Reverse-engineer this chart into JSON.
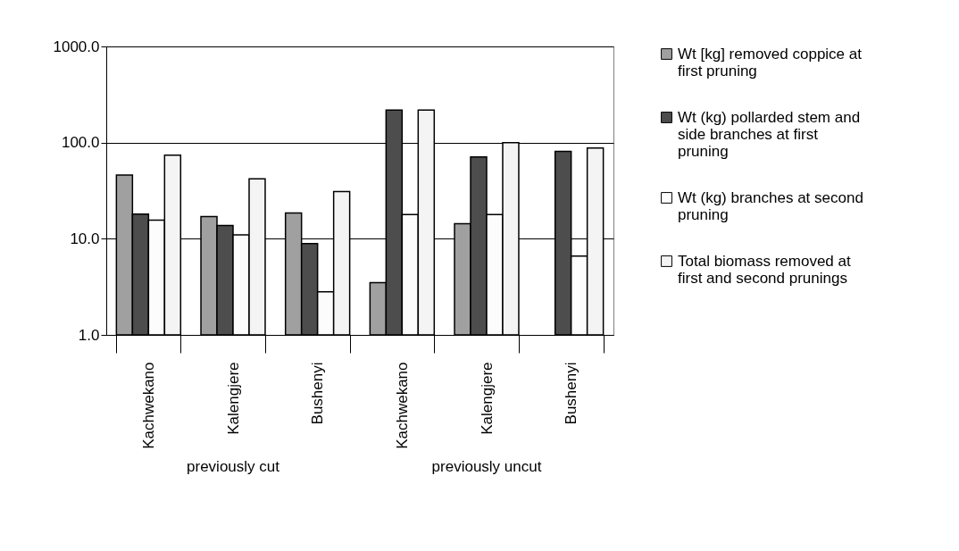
{
  "chart_data": {
    "type": "bar",
    "categories": [
      "Kachwekano",
      "Kalengjere",
      "Bushenyi",
      "Kachwekano",
      "Kalengjere",
      "Bushenyi"
    ],
    "annotations": [
      "previously cut",
      "previously uncut"
    ],
    "series": [
      {
        "name": "Wt [kg] removed coppice at first pruning",
        "color": "#a0a0a0",
        "values": [
          46,
          17,
          18.5,
          3.5,
          14.3,
          null
        ]
      },
      {
        "name": "Wt (kg) pollarded stem and side branches at first pruning",
        "color": "#4d4d4d",
        "values": [
          18,
          13.7,
          8.9,
          218,
          71,
          81
        ]
      },
      {
        "name": "Wt (kg) branches at second pruning",
        "color": "#fcfcfc",
        "values": [
          15.6,
          11,
          2.8,
          17.8,
          17.8,
          6.6
        ]
      },
      {
        "name": "Total biomass removed at first and second prunings",
        "color": "#f4f4f4",
        "values": [
          74,
          42,
          31,
          218,
          100,
          88
        ]
      }
    ],
    "log": "y",
    "ylim": [
      1,
      1000
    ],
    "yticks": [
      {
        "value": 1,
        "label": "1.0"
      },
      {
        "value": 10,
        "label": "10.0"
      },
      {
        "value": 100,
        "label": "100.0"
      },
      {
        "value": 1000,
        "label": "1000.0"
      }
    ],
    "grid": "y",
    "legend": "right"
  }
}
